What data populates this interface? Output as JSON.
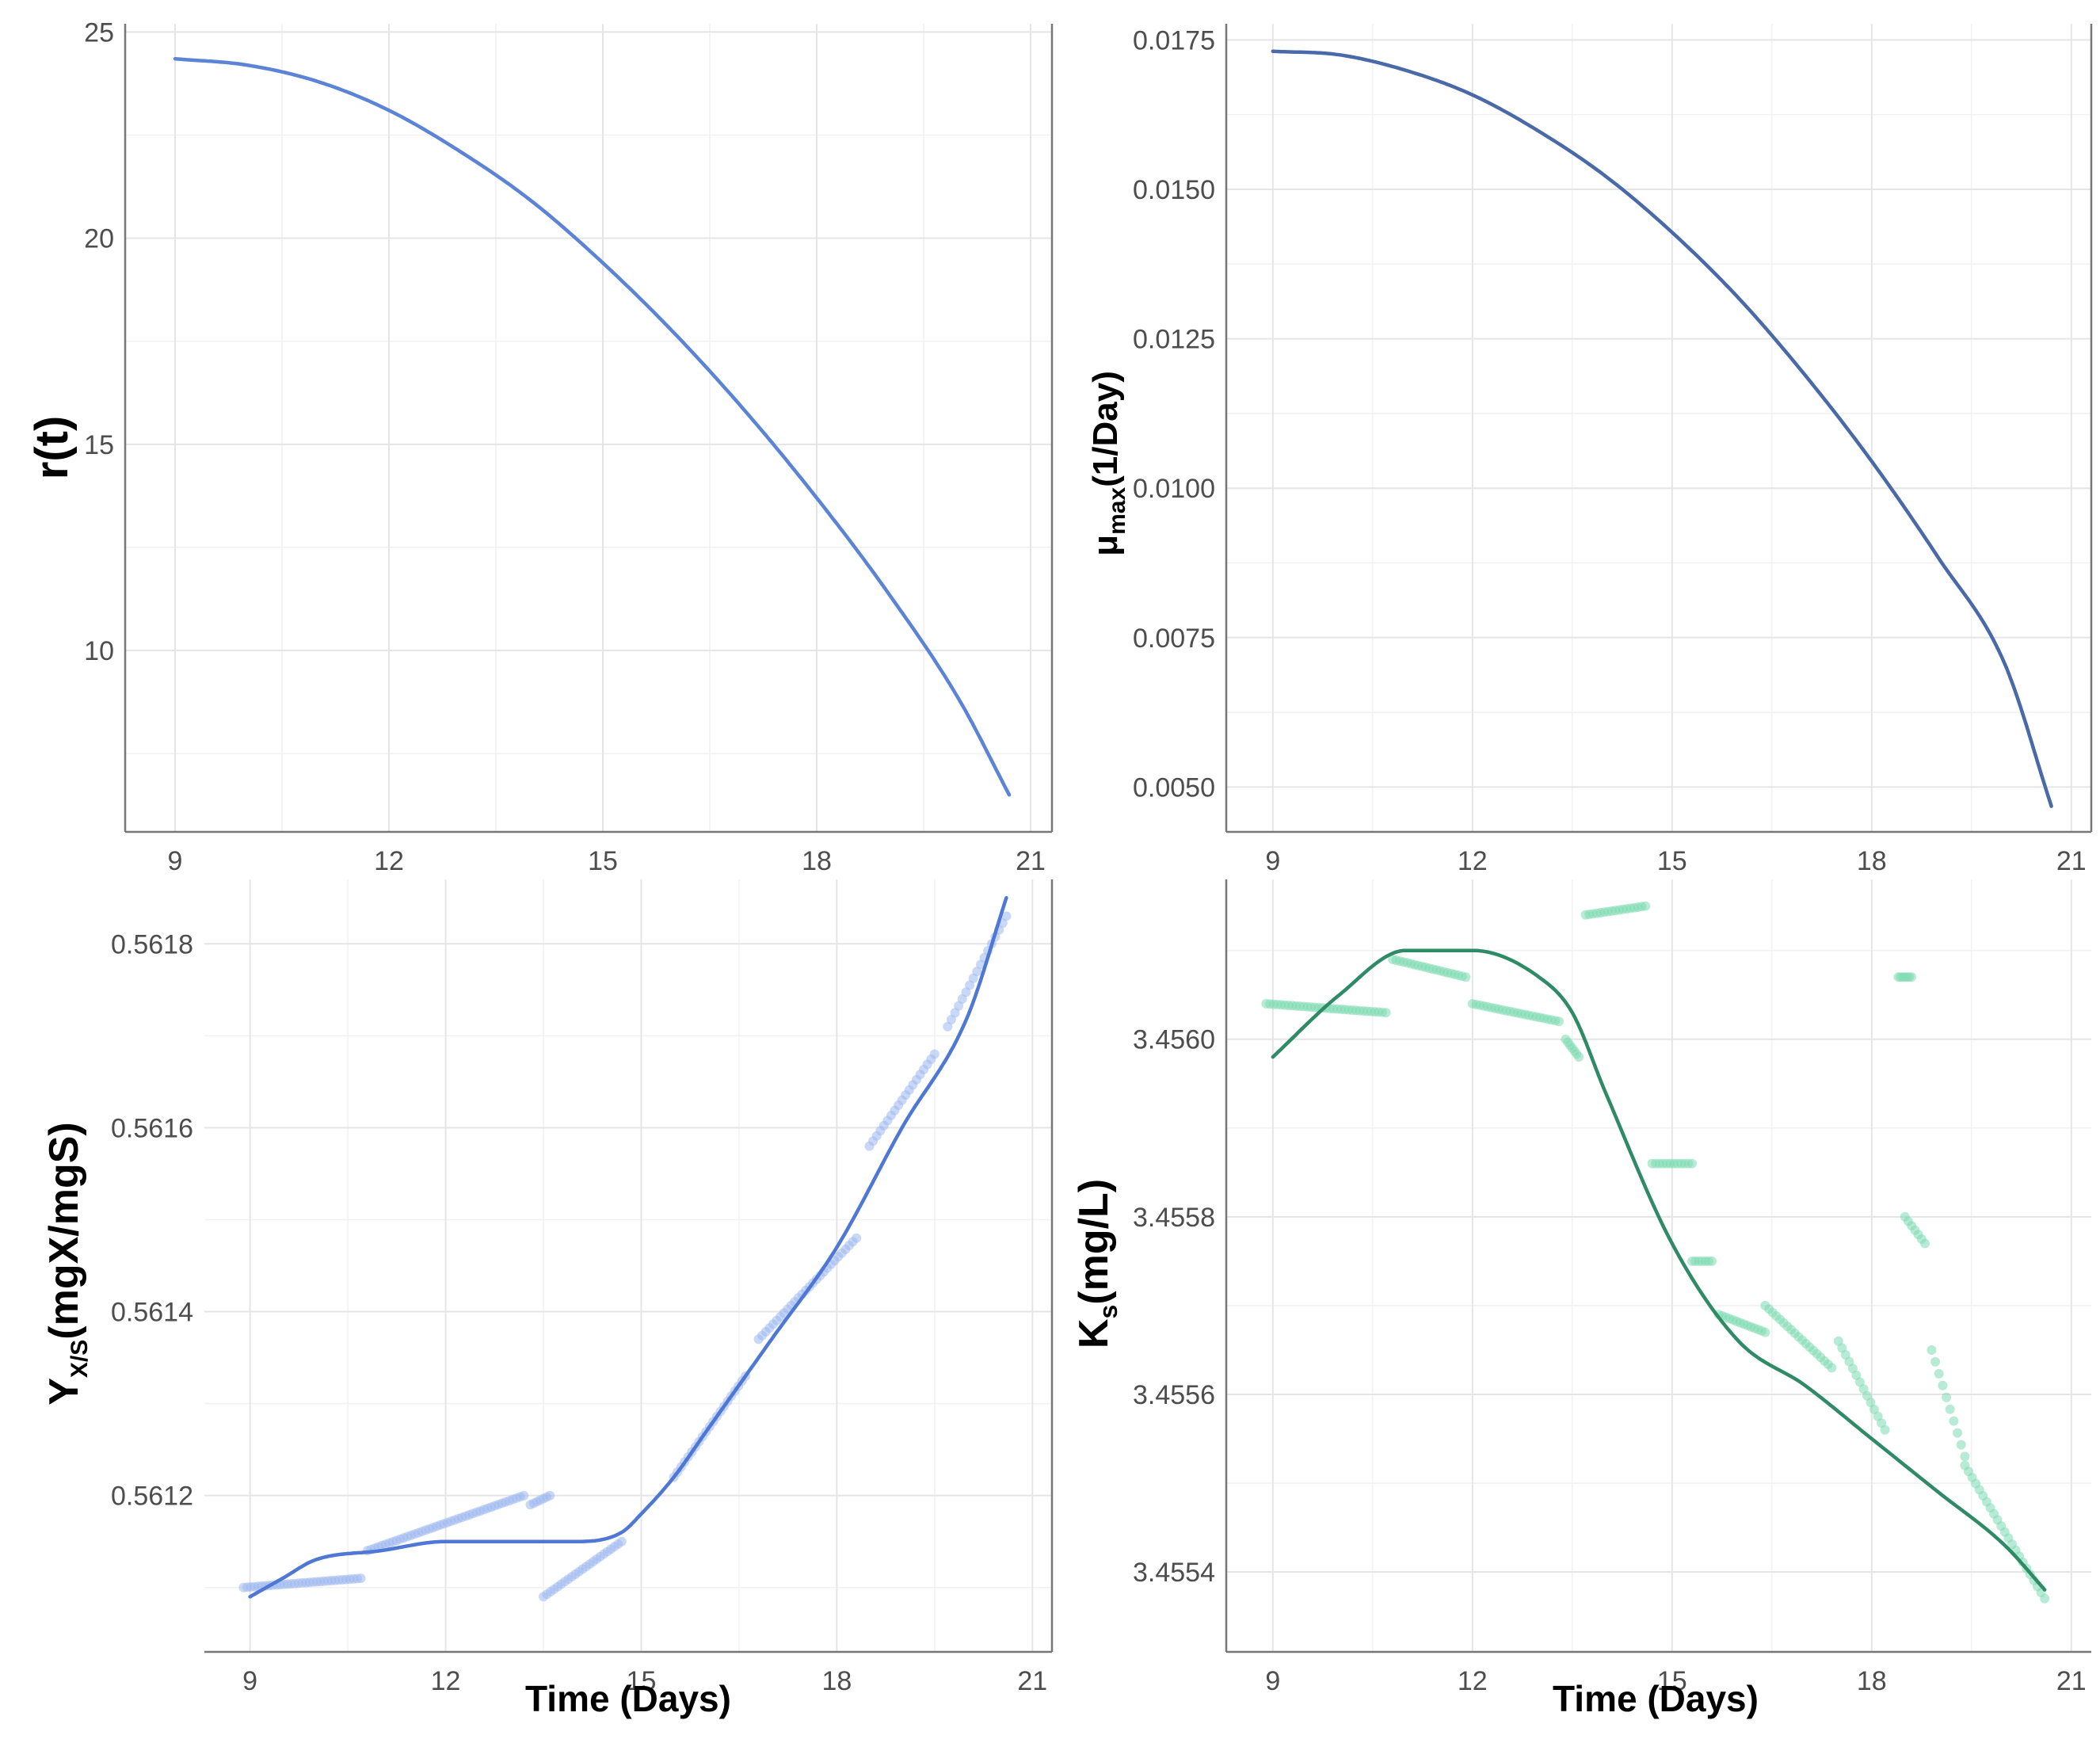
{
  "chart_data": [
    {
      "id": "top-left",
      "type": "line",
      "title": "",
      "xlabel": "",
      "ylabel": "r(t)",
      "xlim": [
        8.3,
        21.3
      ],
      "ylim": [
        5.6,
        25.2
      ],
      "xticks": [
        9,
        12,
        15,
        18,
        21
      ],
      "yticks": [
        10,
        15,
        20,
        25
      ],
      "ytick_labels": [
        "10",
        "15",
        "20",
        "25"
      ],
      "x": [
        9,
        10,
        11,
        12,
        13,
        14,
        15,
        16,
        17,
        18,
        19,
        20,
        20.7
      ],
      "series": [
        {
          "values": [
            24.35,
            24.2,
            23.8,
            23.1,
            22.1,
            20.9,
            19.4,
            17.7,
            15.8,
            13.7,
            11.4,
            8.8,
            6.5
          ],
          "color": "#5b83d6"
        }
      ]
    },
    {
      "id": "top-right",
      "type": "line",
      "title": "",
      "xlabel": "",
      "ylabel_parts": [
        "μ",
        "max",
        "(1/Day)"
      ],
      "xlim": [
        8.3,
        21.3
      ],
      "ylim": [
        0.00425,
        0.01777
      ],
      "xticks": [
        9,
        12,
        15,
        18,
        21
      ],
      "yticks": [
        0.005,
        0.0075,
        0.01,
        0.0125,
        0.015,
        0.0175
      ],
      "ytick_labels": [
        "0.0050",
        "0.0075",
        "0.0100",
        "0.0125",
        "0.0150",
        "0.0175"
      ],
      "x": [
        9,
        10,
        11,
        12,
        13,
        14,
        15,
        16,
        17,
        18,
        19,
        20,
        20.7
      ],
      "series": [
        {
          "values": [
            0.01731,
            0.01725,
            0.01699,
            0.01658,
            0.01597,
            0.01522,
            0.01428,
            0.01318,
            0.01189,
            0.01045,
            0.00884,
            0.00706,
            0.00468
          ],
          "color": "#4a69a8"
        }
      ]
    },
    {
      "id": "bottom-left",
      "type": "scatter",
      "title": "",
      "xlabel": "Time (Days)",
      "ylabel_parts": [
        "Y",
        "X/S",
        "(mgX/mgS)"
      ],
      "xlim": [
        8.3,
        21.3
      ],
      "ylim": [
        0.56103,
        0.56187
      ],
      "xticks": [
        9,
        12,
        15,
        18,
        21
      ],
      "yticks": [
        0.5612,
        0.5614,
        0.5616,
        0.5618
      ],
      "ytick_labels": [
        "0.5612",
        "0.5614",
        "0.5616",
        "0.5618"
      ],
      "x": [
        9,
        9.5,
        10,
        11,
        12,
        13,
        14,
        14.7,
        15,
        15.5,
        16,
        17,
        18,
        19,
        20,
        20.6
      ],
      "series": [
        {
          "values": [
            0.56109,
            0.56111,
            0.56113,
            0.56114,
            0.56115,
            0.56115,
            0.56115,
            0.56116,
            0.56118,
            0.56122,
            0.56127,
            0.56137,
            0.56147,
            0.5616,
            0.56172,
            0.56185
          ],
          "color": "#4e78d4"
        }
      ],
      "points": {
        "color": "#9db8ee",
        "segments": [
          {
            "x0": 8.9,
            "x1": 10.7,
            "y0": 0.5611,
            "y1": 0.56111
          },
          {
            "x0": 10.8,
            "x1": 13.2,
            "y0": 0.56114,
            "y1": 0.5612
          },
          {
            "x0": 13.3,
            "x1": 13.6,
            "y0": 0.56119,
            "y1": 0.5612
          },
          {
            "x0": 13.5,
            "x1": 14.7,
            "y0": 0.56109,
            "y1": 0.56115
          },
          {
            "x0": 15.5,
            "x1": 16.6,
            "y0": 0.56122,
            "y1": 0.56133
          },
          {
            "x0": 16.8,
            "x1": 18.3,
            "y0": 0.56137,
            "y1": 0.56148
          },
          {
            "x0": 18.5,
            "x1": 19.5,
            "y0": 0.56158,
            "y1": 0.56168
          },
          {
            "x0": 19.7,
            "x1": 20.6,
            "y0": 0.56171,
            "y1": 0.56183
          }
        ]
      }
    },
    {
      "id": "bottom-right",
      "type": "scatter",
      "title": "",
      "xlabel": "Time (Days)",
      "ylabel_parts": [
        "K",
        "s",
        "(mg/L)"
      ],
      "xlim": [
        8.3,
        21.3
      ],
      "ylim": [
        3.45531,
        3.45618
      ],
      "xticks": [
        9,
        12,
        15,
        18,
        21
      ],
      "yticks": [
        3.4554,
        3.4556,
        3.4558,
        3.456
      ],
      "ytick_labels": [
        "3.4554",
        "3.4556",
        "3.4558",
        "3.4560"
      ],
      "x": [
        9,
        10,
        11,
        12,
        13,
        13.5,
        14,
        15,
        16,
        17,
        18,
        19,
        20,
        20.6
      ],
      "series": [
        {
          "values": [
            3.45598,
            3.45605,
            3.4561,
            3.4561,
            3.45607,
            3.45603,
            3.45594,
            3.45577,
            3.45566,
            3.45561,
            3.45555,
            3.45549,
            3.45543,
            3.45538
          ],
          "color": "#2e8b65"
        }
      ],
      "points": {
        "color": "#7ddbb3",
        "segments": [
          {
            "x0": 8.9,
            "x1": 10.7,
            "y0": 3.45604,
            "y1": 3.45603
          },
          {
            "x0": 10.8,
            "x1": 11.9,
            "y0": 3.45609,
            "y1": 3.45607
          },
          {
            "x0": 12.0,
            "x1": 13.3,
            "y0": 3.45604,
            "y1": 3.45602
          },
          {
            "x0": 13.4,
            "x1": 13.6,
            "y0": 3.456,
            "y1": 3.45598
          },
          {
            "x0": 13.7,
            "x1": 14.6,
            "y0": 3.45614,
            "y1": 3.45615
          },
          {
            "x0": 14.7,
            "x1": 15.3,
            "y0": 3.45586,
            "y1": 3.45586
          },
          {
            "x0": 15.3,
            "x1": 15.6,
            "y0": 3.45575,
            "y1": 3.45575
          },
          {
            "x0": 15.7,
            "x1": 16.4,
            "y0": 3.45569,
            "y1": 3.45567
          },
          {
            "x0": 16.4,
            "x1": 17.4,
            "y0": 3.4557,
            "y1": 3.45563
          },
          {
            "x0": 17.5,
            "x1": 18.2,
            "y0": 3.45566,
            "y1": 3.45556
          },
          {
            "x0": 18.4,
            "x1": 18.6,
            "y0": 3.45607,
            "y1": 3.45607
          },
          {
            "x0": 18.5,
            "x1": 18.8,
            "y0": 3.4558,
            "y1": 3.45577
          },
          {
            "x0": 18.9,
            "x1": 19.4,
            "y0": 3.45565,
            "y1": 3.45553
          },
          {
            "x0": 19.4,
            "x1": 20.6,
            "y0": 3.45552,
            "y1": 3.45537
          }
        ]
      }
    }
  ]
}
